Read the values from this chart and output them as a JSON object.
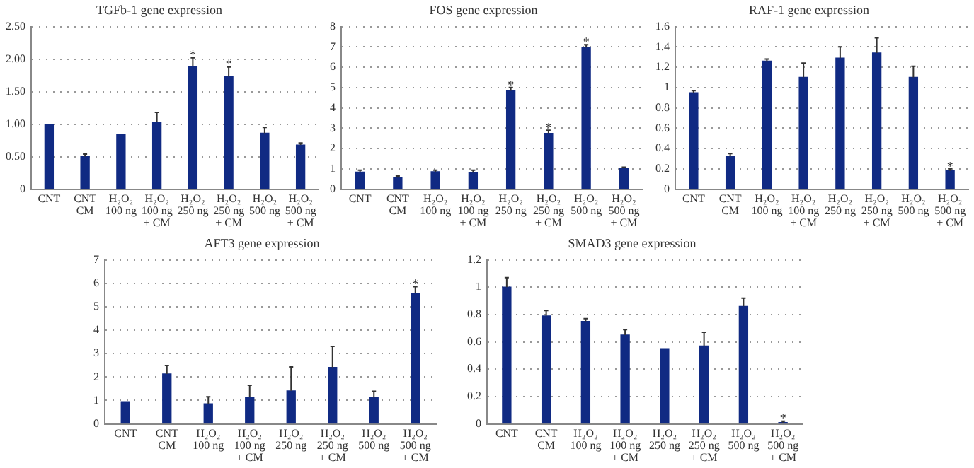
{
  "chart_data": [
    {
      "type": "bar",
      "title": "TGFb-1 gene expression",
      "categories": [
        "CNT",
        "CNT\nCM",
        "H₂O₂\n100 ng",
        "H₂O₂\n100 ng\n+ CM",
        "H₂O₂\n250 ng",
        "H₂O₂\n250 ng\n+ CM",
        "H₂O₂\n500 ng",
        "H₂O₂\n500 ng\n+ CM"
      ],
      "color": "#102a83",
      "values": [
        1.0,
        0.5,
        0.84,
        1.03,
        1.89,
        1.73,
        0.86,
        0.68
      ],
      "errors": [
        null,
        [
          0.5,
          0.54
        ],
        null,
        [
          1.03,
          1.18
        ],
        [
          1.89,
          2.02
        ],
        [
          1.73,
          1.88
        ],
        [
          0.86,
          0.95
        ],
        [
          0.68,
          0.71
        ]
      ],
      "ylim": [
        0,
        2.5
      ],
      "yticks": [
        0,
        {
          "value": 0.5,
          "label": "0.50"
        },
        {
          "value": 1,
          "label": "1.00"
        },
        {
          "value": 1.5,
          "label": "1.50"
        },
        {
          "value": 2,
          "label": "2.00"
        },
        {
          "value": 2.5,
          "label": "2.50"
        }
      ],
      "grid": "y",
      "annotations": [
        {
          "text": "*",
          "x": "H₂O₂\n250 ng",
          "y": 2.02
        },
        {
          "text": "*",
          "x": "H₂O₂\n250 ng\n+ CM",
          "y": 1.88
        }
      ]
    },
    {
      "type": "bar",
      "title": "FOS gene expression",
      "categories": [
        "CNT",
        "CNT\nCM",
        "H₂O₂\n100 ng",
        "H₂O₂\n100 ng\n+ CM",
        "H₂O₂\n250 ng",
        "H₂O₂\n250 ng\n+ CM",
        "H₂O₂\n500 ng",
        "H₂O₂\n500 ng\n+ CM"
      ],
      "color": "#102a83",
      "values": [
        0.84,
        0.57,
        0.86,
        0.81,
        4.84,
        2.75,
        6.97,
        1.03
      ],
      "errors": [
        [
          0.84,
          0.93
        ],
        [
          0.57,
          0.65
        ],
        [
          0.86,
          0.93
        ],
        [
          0.81,
          0.93
        ],
        [
          4.84,
          5.0
        ],
        [
          2.75,
          2.9
        ],
        [
          6.97,
          7.11
        ],
        [
          1.03,
          1.08
        ]
      ],
      "ylim": [
        0,
        8
      ],
      "yticks": [
        0,
        1,
        2,
        3,
        4,
        5,
        6,
        7,
        8
      ],
      "grid": "y",
      "annotations": [
        {
          "text": "*",
          "x": "H₂O₂\n250 ng",
          "y": 5.0
        },
        {
          "text": "*",
          "x": "H₂O₂\n250 ng\n+ CM",
          "y": 2.9
        },
        {
          "text": "*",
          "x": "H₂O₂\n500 ng",
          "y": 7.11
        }
      ]
    },
    {
      "type": "bar",
      "title": "RAF-1 gene expression",
      "categories": [
        "CNT",
        "CNT\nCM",
        "H₂O₂\n100 ng",
        "H₂O₂\n100 ng\n+ CM",
        "H₂O₂\n250 ng",
        "H₂O₂\n250 ng\n+ CM",
        "H₂O₂\n500 ng",
        "H₂O₂\n500 ng\n+ CM"
      ],
      "color": "#102a83",
      "values": [
        0.95,
        0.32,
        1.26,
        1.1,
        1.29,
        1.34,
        1.1,
        0.18
      ],
      "errors": [
        [
          0.95,
          0.97
        ],
        [
          0.32,
          0.35
        ],
        [
          1.26,
          1.28
        ],
        [
          1.1,
          1.24
        ],
        [
          1.29,
          1.4
        ],
        [
          1.34,
          1.49
        ],
        [
          1.1,
          1.21
        ],
        [
          0.18,
          0.2
        ]
      ],
      "ylim": [
        0,
        1.6
      ],
      "yticks": [
        0,
        0.2,
        0.4,
        0.6,
        0.8,
        1,
        1.2,
        1.4,
        1.6
      ],
      "grid": "y",
      "annotations": [
        {
          "text": "*",
          "x": "H₂O₂\n500 ng\n+ CM",
          "y": 0.2
        }
      ]
    },
    {
      "type": "bar",
      "title": "AFT3 gene expression",
      "categories": [
        "CNT",
        "CNT\nCM",
        "H₂O₂\n100 ng",
        "H₂O₂\n100 ng\n+ CM",
        "H₂O₂\n250 ng",
        "H₂O₂\n250 ng\n+ CM",
        "H₂O₂\n500 ng",
        "H₂O₂\n500 ng\n+ CM"
      ],
      "color": "#102a83",
      "values": [
        0.95,
        2.13,
        0.86,
        1.14,
        1.41,
        2.41,
        1.12,
        5.57
      ],
      "errors": [
        null,
        [
          2.13,
          2.49
        ],
        [
          0.86,
          1.16
        ],
        [
          1.14,
          1.65
        ],
        [
          1.41,
          2.43
        ],
        [
          2.41,
          3.31
        ],
        [
          1.12,
          1.39
        ],
        [
          5.57,
          5.86
        ]
      ],
      "ylim": [
        0,
        7
      ],
      "yticks": [
        0,
        1,
        2,
        3,
        4,
        5,
        6,
        7
      ],
      "grid": "y",
      "annotations": [
        {
          "text": "*",
          "x": "H₂O₂\n500 ng\n+ CM",
          "y": 5.86
        }
      ]
    },
    {
      "type": "bar",
      "title": "SMAD3 gene expression",
      "categories": [
        "CNT",
        "CNT\nCM",
        "H₂O₂\n100 ng",
        "H₂O₂\n100 ng\n+ CM",
        "H₂O₂\n250 ng",
        "H₂O₂\n250 ng\n+ CM",
        "H₂O₂\n500 ng",
        "H₂O₂\n500 ng\n+ CM"
      ],
      "color": "#102a83",
      "values": [
        1.0,
        0.79,
        0.75,
        0.65,
        0.55,
        0.57,
        0.86,
        0.01
      ],
      "errors": [
        [
          1.0,
          1.07
        ],
        [
          0.79,
          0.83
        ],
        [
          0.75,
          0.77
        ],
        [
          0.65,
          0.69
        ],
        null,
        [
          0.57,
          0.67
        ],
        [
          0.86,
          0.92
        ],
        [
          0.01,
          0.02
        ]
      ],
      "ylim": [
        0,
        1.2
      ],
      "yticks": [
        0,
        0.2,
        0.4,
        0.6,
        0.8,
        1,
        1.2
      ],
      "grid": "y",
      "annotations": [
        {
          "text": "*",
          "x": "H₂O₂\n500 ng\n+ CM",
          "y": 0.02
        }
      ]
    }
  ]
}
